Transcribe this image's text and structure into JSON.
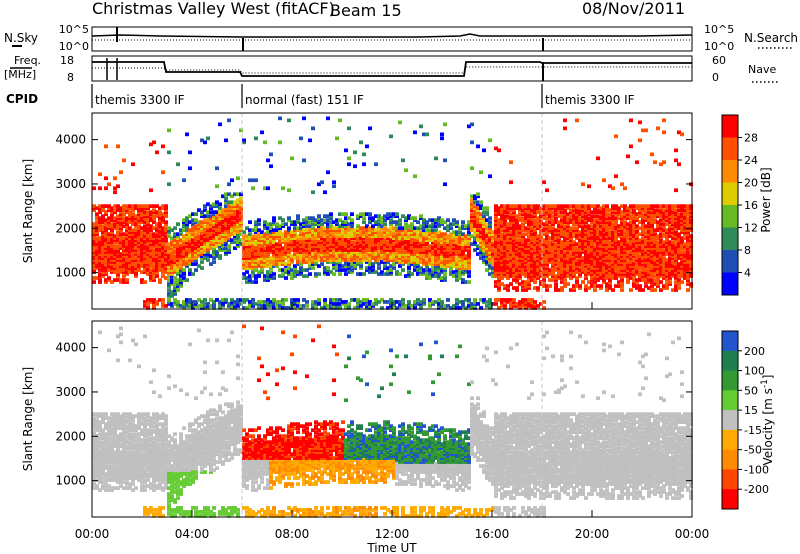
{
  "header": {
    "title": "Christmas Valley West (fitACF)",
    "beam": "Beam 15",
    "date": "08/Nov/2011"
  },
  "chart_data": [
    {
      "type": "line",
      "panel": "noise",
      "left_label": "N.Sky",
      "right_label": "N.Search",
      "left_ticks": [
        "10^5",
        "10^0"
      ],
      "right_ticks": [
        "10^5",
        "10^0"
      ],
      "series": [
        {
          "name": "N.Sky",
          "style": "solid"
        },
        {
          "name": "N.Search",
          "style": "dotted"
        }
      ]
    },
    {
      "type": "line",
      "panel": "frequency",
      "left_label_1": "Freq.",
      "left_label_2": "[MHz]",
      "left_ticks": [
        "18",
        "8"
      ],
      "right_label": "Nave",
      "right_ticks": [
        "60",
        "0"
      ],
      "series": [
        {
          "name": "Freq.",
          "style": "solid"
        },
        {
          "name": "Nave",
          "style": "dotted"
        }
      ]
    },
    {
      "type": "table",
      "panel": "cpid",
      "label": "CPID",
      "segments": [
        {
          "start_hour": 0,
          "end_hour": 6,
          "label": "themis 3300 IF"
        },
        {
          "start_hour": 6,
          "end_hour": 18,
          "label": "normal (fast) 151 IF"
        },
        {
          "start_hour": 18,
          "end_hour": 24,
          "label": "themis 3300 IF"
        }
      ]
    },
    {
      "type": "heatmap",
      "panel": "power",
      "ylabel": "Slant Range [km]",
      "yticks": [
        "4000",
        "3000",
        "2000",
        "1000"
      ],
      "ylim": [
        180,
        4600
      ],
      "colorbar": {
        "label": "Power [dB]",
        "ticks": [
          "28",
          "24",
          "20",
          "16",
          "12",
          "8",
          "4"
        ],
        "colors": [
          "#0000ff",
          "#1f4fb4",
          "#2e8b57",
          "#66bb22",
          "#ddcc00",
          "#ff8c00",
          "#ff5000",
          "#ff0000"
        ]
      }
    },
    {
      "type": "heatmap",
      "panel": "velocity",
      "ylabel": "Slant Range [km]",
      "yticks": [
        "4000",
        "3000",
        "2000",
        "1000"
      ],
      "ylim": [
        180,
        4600
      ],
      "xlabel": "Time UT",
      "xticks": [
        "00:00",
        "04:00",
        "08:00",
        "12:00",
        "16:00",
        "20:00",
        "00:00"
      ],
      "xlim_hours": [
        0,
        24
      ],
      "colorbar": {
        "label_main": "Velocity [m s",
        "label_exp": "-1",
        "label_close": "]",
        "ticks": [
          "200",
          "100",
          "50",
          "15",
          "-15",
          "-50",
          "-100",
          "-200"
        ],
        "colors": [
          "#ff0000",
          "#ff4500",
          "#ff8c00",
          "#ffaa00",
          "#c0c0c0",
          "#66cc33",
          "#339933",
          "#1f7f4f",
          "#2255cc"
        ]
      }
    }
  ]
}
